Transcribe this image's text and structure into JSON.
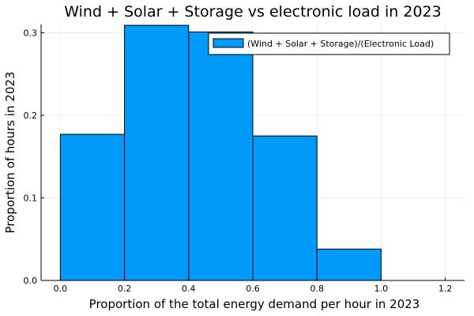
{
  "chart_data": {
    "type": "bar",
    "title": "Wind + Solar + Storage vs electronic load in 2023",
    "xlabel": "Proportion of the total energy demand per hour in 2023",
    "ylabel": "Proportion of hours in 2023",
    "bins": [
      {
        "x0": 0.0,
        "x1": 0.2,
        "value": 0.177
      },
      {
        "x0": 0.2,
        "x1": 0.4,
        "value": 0.309
      },
      {
        "x0": 0.4,
        "x1": 0.6,
        "value": 0.301
      },
      {
        "x0": 0.6,
        "x1": 0.8,
        "value": 0.175
      },
      {
        "x0": 0.8,
        "x1": 1.0,
        "value": 0.038
      }
    ],
    "xlim": [
      -0.06,
      1.26
    ],
    "ylim": [
      0.0,
      0.31
    ],
    "xticks": [
      0.0,
      0.2,
      0.4,
      0.6,
      0.8,
      1.0,
      1.2
    ],
    "xtick_labels": [
      "0.0",
      "0.2",
      "0.4",
      "0.6",
      "0.8",
      "1.0",
      "1.2"
    ],
    "yticks": [
      0.0,
      0.1,
      0.2,
      0.3
    ],
    "ytick_labels": [
      "0.0",
      "0.1",
      "0.2",
      "0.3"
    ],
    "grid": true,
    "legend_position": "top-right",
    "series": [
      {
        "name": "(Wind + Solar + Storage)/(Electronic Load)",
        "color": "#009AFA"
      }
    ],
    "colors": {
      "bar_fill": "#009AFA",
      "bar_stroke": "#000000",
      "grid": "#ebebeb",
      "axis": "#000000"
    }
  }
}
